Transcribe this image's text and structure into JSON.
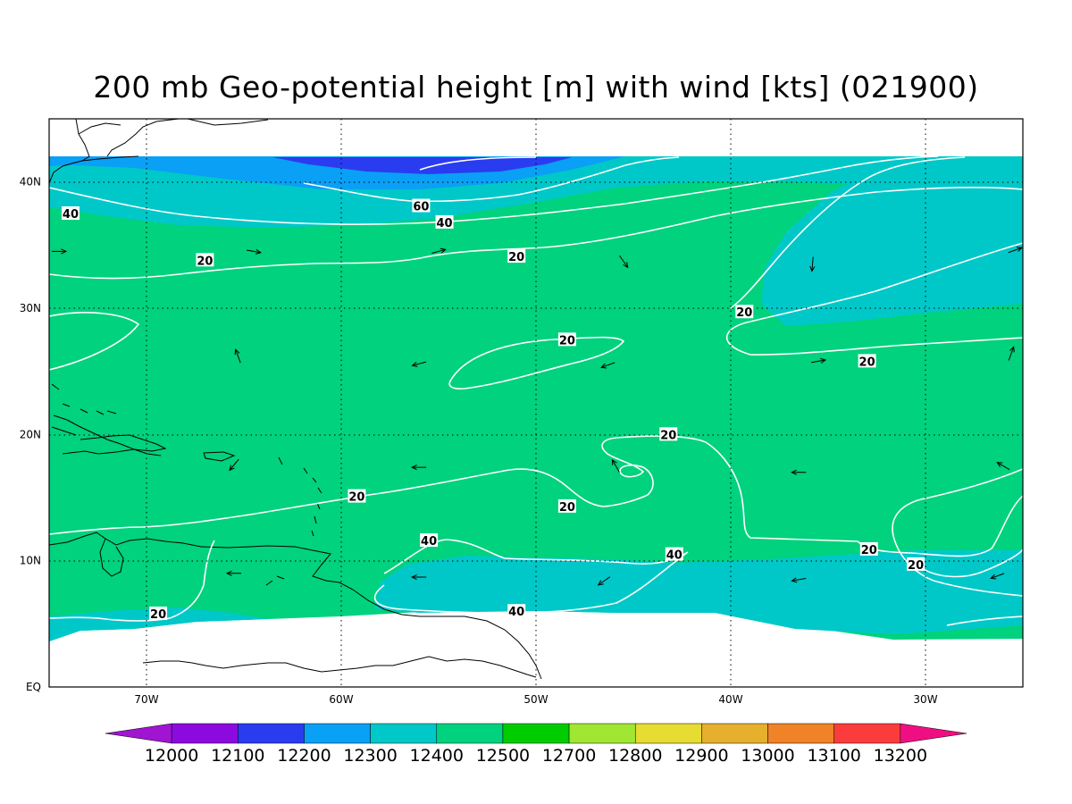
{
  "title": "200 mb Geo-potential height [m] with wind [kts] (021900)",
  "axes": {
    "lon_labels": [
      "70W",
      "60W",
      "50W",
      "40W",
      "30W"
    ],
    "lat_labels": [
      "EQ",
      "10N",
      "20N",
      "30N",
      "40N"
    ],
    "lon_values": [
      -70,
      -60,
      -50,
      -40,
      -30
    ],
    "lat_values": [
      0,
      10,
      20,
      30,
      40
    ],
    "lon_range": [
      -75,
      -25
    ],
    "lat_range": [
      0,
      45
    ],
    "grid": "dotted"
  },
  "fill_colors": {
    "12200": "#2a3cf0",
    "12300": "#0aa0f5",
    "12400": "#00c8c8",
    "12500": "#00d27d"
  },
  "wind_contour_labels": [
    {
      "text": "60",
      "lon": -55.9,
      "lat": 38.1
    },
    {
      "text": "40",
      "lon": -73.9,
      "lat": 37.5
    },
    {
      "text": "40",
      "lon": -54.7,
      "lat": 36.8
    },
    {
      "text": "20",
      "lon": -67.0,
      "lat": 33.8
    },
    {
      "text": "20",
      "lon": -51.0,
      "lat": 34.1
    },
    {
      "text": "20",
      "lon": -39.3,
      "lat": 29.7
    },
    {
      "text": "20",
      "lon": -33.0,
      "lat": 25.8
    },
    {
      "text": "20",
      "lon": -48.4,
      "lat": 27.5
    },
    {
      "text": "20",
      "lon": -43.2,
      "lat": 20.0
    },
    {
      "text": "20",
      "lon": -59.2,
      "lat": 15.1
    },
    {
      "text": "20",
      "lon": -48.4,
      "lat": 14.3
    },
    {
      "text": "20",
      "lon": -32.9,
      "lat": 10.9
    },
    {
      "text": "20",
      "lon": -30.5,
      "lat": 9.7
    },
    {
      "text": "20",
      "lon": -69.4,
      "lat": 5.8
    },
    {
      "text": "40",
      "lon": -55.5,
      "lat": 11.6
    },
    {
      "text": "40",
      "lon": -42.9,
      "lat": 10.5
    },
    {
      "text": "40",
      "lon": -51.0,
      "lat": 6.0
    }
  ],
  "wind_arrows": [
    {
      "lon": -74.5,
      "lat": 34.5,
      "dir": 90
    },
    {
      "lon": -64.5,
      "lat": 34.5,
      "dir": 100
    },
    {
      "lon": -55.0,
      "lat": 34.5,
      "dir": 75
    },
    {
      "lon": -45.5,
      "lat": 33.7,
      "dir": 145
    },
    {
      "lon": -35.8,
      "lat": 33.5,
      "dir": 185
    },
    {
      "lon": -25.4,
      "lat": 34.6,
      "dir": 70
    },
    {
      "lon": -65.3,
      "lat": 26.2,
      "dir": 340
    },
    {
      "lon": -56.0,
      "lat": 25.6,
      "dir": 255
    },
    {
      "lon": -46.3,
      "lat": 25.5,
      "dir": 250
    },
    {
      "lon": -35.5,
      "lat": 25.8,
      "dir": 80
    },
    {
      "lon": -25.6,
      "lat": 26.4,
      "dir": 20
    },
    {
      "lon": -65.5,
      "lat": 17.6,
      "dir": 220
    },
    {
      "lon": -56.0,
      "lat": 17.4,
      "dir": 270
    },
    {
      "lon": -45.9,
      "lat": 17.5,
      "dir": 330
    },
    {
      "lon": -36.5,
      "lat": 17.0,
      "dir": 270
    },
    {
      "lon": -26.0,
      "lat": 17.5,
      "dir": 300
    },
    {
      "lon": -65.5,
      "lat": 9.0,
      "dir": 270
    },
    {
      "lon": -56.0,
      "lat": 8.7,
      "dir": 270
    },
    {
      "lon": -46.5,
      "lat": 8.4,
      "dir": 235
    },
    {
      "lon": -36.5,
      "lat": 8.5,
      "dir": 260
    },
    {
      "lon": -26.3,
      "lat": 8.8,
      "dir": 250
    }
  ],
  "colorbar": {
    "colors": [
      "#a014d2",
      "#8c0ade",
      "#2a3cf0",
      "#0aa0f5",
      "#00c8c8",
      "#00d27d",
      "#00cc00",
      "#a0e632",
      "#e6dc32",
      "#e6af2d",
      "#f08228",
      "#fa3c3c",
      "#f00f82"
    ],
    "labels": [
      "12000",
      "12100",
      "12200",
      "12300",
      "12400",
      "12500",
      "12700",
      "12800",
      "12900",
      "13000",
      "13100",
      "13200"
    ]
  }
}
